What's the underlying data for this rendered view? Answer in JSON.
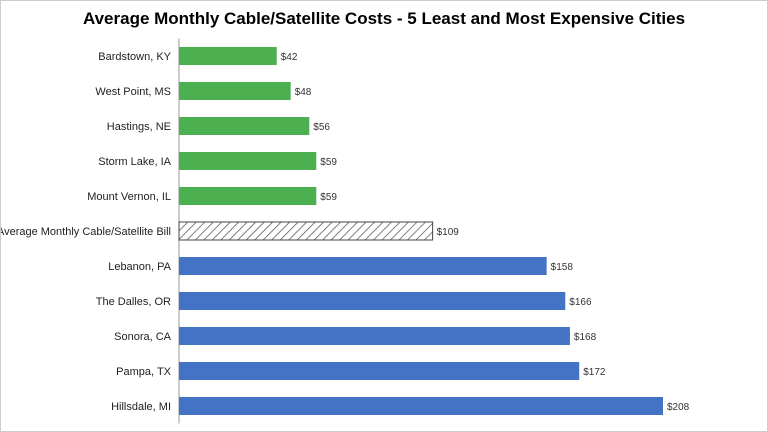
{
  "chart_data": {
    "type": "bar",
    "orientation": "horizontal",
    "title": "Average Monthly Cable/Satellite Costs - 5 Least and Most Expensive Cities",
    "xlabel": "",
    "ylabel": "",
    "xlim": [
      0,
      208
    ],
    "grid": false,
    "categories": [
      "Bardstown, KY",
      "West Point, MS",
      "Hastings, NE",
      "Storm Lake, IA",
      "Mount Vernon, IL",
      "Average Monthly Cable/Satellite Bill",
      "Lebanon, PA",
      "The Dalles, OR",
      "Sonora, CA",
      "Pampa, TX",
      "Hillsdale, MI"
    ],
    "values": [
      42,
      48,
      56,
      59,
      59,
      109,
      158,
      166,
      168,
      172,
      208
    ],
    "value_labels": [
      "$42",
      "$48",
      "$56",
      "$59",
      "$59",
      "$109",
      "$158",
      "$166",
      "$168",
      "$172",
      "$208"
    ],
    "bar_styles": [
      "least",
      "least",
      "least",
      "least",
      "least",
      "average",
      "most",
      "most",
      "most",
      "most",
      "most"
    ],
    "colors": {
      "least": "#4caf50",
      "most": "#4472c4",
      "average": "#ffffff",
      "average_hatch": "#555555",
      "axis": "#999999"
    }
  }
}
